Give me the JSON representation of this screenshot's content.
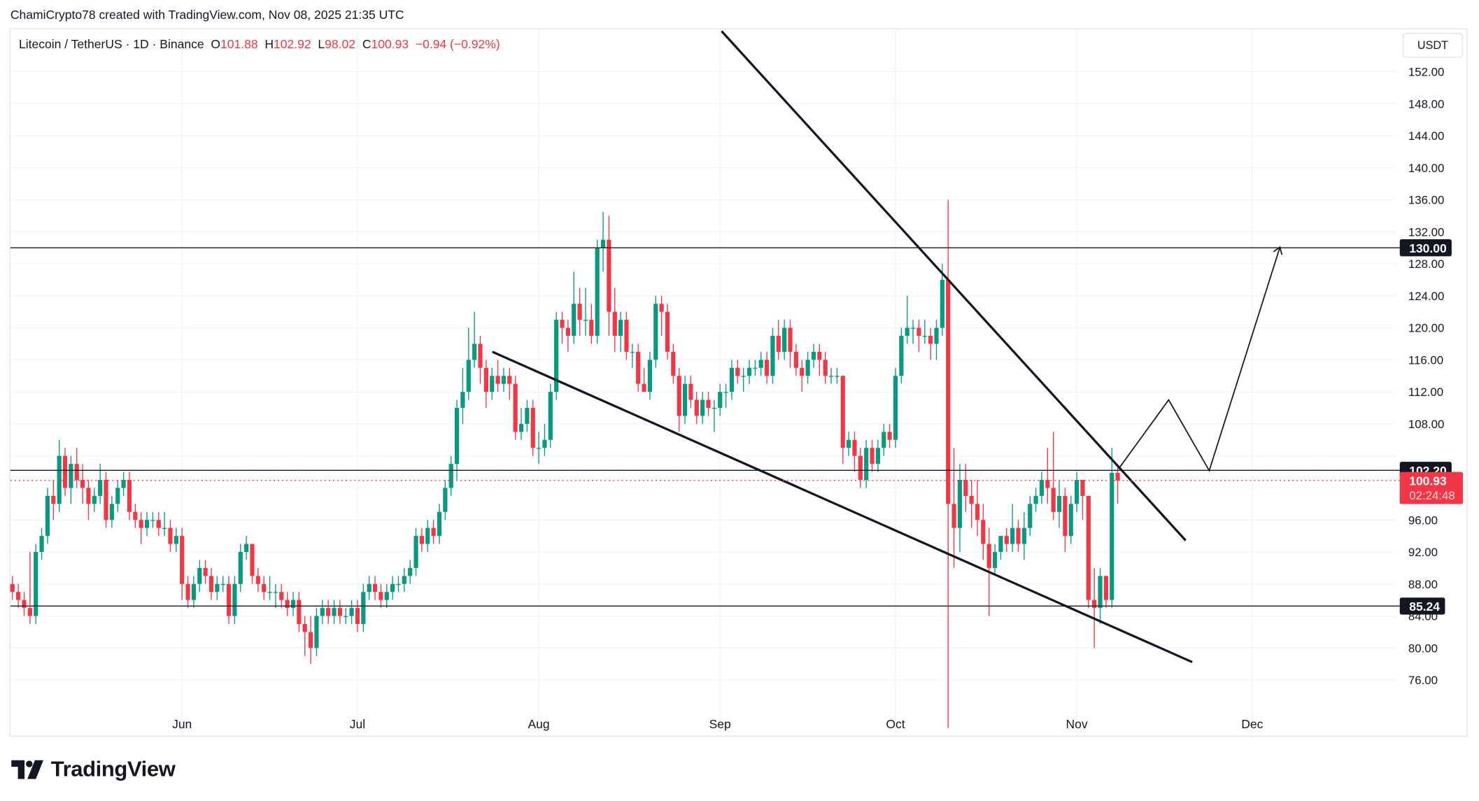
{
  "credit": "ChamiCrypto78 created with TradingView.com, Nov 08, 2025 21:35 UTC",
  "legend": {
    "symbol": "Litecoin / TetherUS · 1D · Binance",
    "o_label": "O",
    "o": "101.88",
    "h_label": "H",
    "h": "102.92",
    "l_label": "L",
    "l": "98.02",
    "c_label": "C",
    "c": "100.93",
    "change": "−0.94 (−0.92%)"
  },
  "currency_button": "USDT",
  "brand": "TradingView",
  "colors": {
    "up": "#089981",
    "down": "#f23645",
    "line": "#131722"
  },
  "chart_data": {
    "type": "candlestick",
    "title": "Litecoin / TetherUS · 1D · Binance",
    "ylim": [
      72,
      156
    ],
    "grid": true,
    "y_ticks": [
      "152.00",
      "148.00",
      "144.00",
      "140.00",
      "136.00",
      "132.00",
      "128.00",
      "124.00",
      "120.00",
      "116.00",
      "112.00",
      "108.00",
      "96.00",
      "92.00",
      "88.00",
      "84.00",
      "80.00",
      "76.00"
    ],
    "x_ticks": [
      {
        "label": "Jun",
        "date": "2025-06-01"
      },
      {
        "label": "Jul",
        "date": "2025-07-01"
      },
      {
        "label": "Aug",
        "date": "2025-08-01"
      },
      {
        "label": "Sep",
        "date": "2025-09-01"
      },
      {
        "label": "Oct",
        "date": "2025-10-01"
      },
      {
        "label": "Nov",
        "date": "2025-11-01"
      },
      {
        "label": "Dec",
        "date": "2025-12-01"
      }
    ],
    "levels": [
      {
        "value": 130.0,
        "label": "130.00"
      },
      {
        "value": 102.2,
        "label": "102.20"
      },
      {
        "value": 85.24,
        "label": "85.24"
      }
    ],
    "last_price": {
      "value": 100.93,
      "label": "100.93",
      "countdown": "02:24:48"
    },
    "candles": [
      [
        "2025-05-03",
        88,
        89,
        86,
        87
      ],
      [
        "2025-05-04",
        87,
        88,
        85,
        86
      ],
      [
        "2025-05-05",
        86,
        87,
        84,
        85
      ],
      [
        "2025-05-06",
        85,
        92,
        83,
        84
      ],
      [
        "2025-05-07",
        84,
        93,
        83,
        92
      ],
      [
        "2025-05-08",
        92,
        95,
        91,
        94
      ],
      [
        "2025-05-09",
        94,
        100,
        93,
        99
      ],
      [
        "2025-05-10",
        99,
        101,
        96,
        98
      ],
      [
        "2025-05-11",
        98,
        106,
        97,
        104
      ],
      [
        "2025-05-12",
        104,
        105,
        99,
        100
      ],
      [
        "2025-05-13",
        100,
        104,
        98,
        103
      ],
      [
        "2025-05-14",
        103,
        105,
        100,
        101
      ],
      [
        "2025-05-15",
        101,
        103,
        98,
        100
      ],
      [
        "2025-05-16",
        100,
        101,
        96,
        98
      ],
      [
        "2025-05-17",
        98,
        100,
        97,
        99
      ],
      [
        "2025-05-18",
        99,
        103,
        98,
        101
      ],
      [
        "2025-05-19",
        101,
        102,
        95,
        96
      ],
      [
        "2025-05-20",
        96,
        99,
        95,
        98
      ],
      [
        "2025-05-21",
        98,
        101,
        97,
        100
      ],
      [
        "2025-05-22",
        100,
        102,
        99,
        101
      ],
      [
        "2025-05-23",
        101,
        102,
        96,
        97
      ],
      [
        "2025-05-24",
        97,
        98,
        95,
        96
      ],
      [
        "2025-05-25",
        96,
        97,
        93,
        95
      ],
      [
        "2025-05-26",
        95,
        97,
        94,
        96
      ],
      [
        "2025-05-27",
        96,
        97,
        95,
        96
      ],
      [
        "2025-05-28",
        96,
        97,
        94,
        95
      ],
      [
        "2025-05-29",
        95,
        97,
        94,
        95
      ],
      [
        "2025-05-30",
        95,
        96,
        92,
        93
      ],
      [
        "2025-05-31",
        93,
        95,
        92,
        94
      ],
      [
        "2025-06-01",
        94,
        95,
        86,
        88
      ],
      [
        "2025-06-02",
        88,
        89,
        85,
        86
      ],
      [
        "2025-06-03",
        86,
        89,
        85,
        88
      ],
      [
        "2025-06-04",
        88,
        91,
        87,
        90
      ],
      [
        "2025-06-05",
        90,
        91,
        88,
        89
      ],
      [
        "2025-06-06",
        89,
        90,
        86,
        87
      ],
      [
        "2025-06-07",
        87,
        89,
        86,
        88
      ],
      [
        "2025-06-08",
        88,
        89,
        87,
        88
      ],
      [
        "2025-06-09",
        88,
        89,
        83,
        84
      ],
      [
        "2025-06-10",
        84,
        89,
        83,
        88
      ],
      [
        "2025-06-11",
        88,
        93,
        87,
        92
      ],
      [
        "2025-06-12",
        92,
        94,
        91,
        93
      ],
      [
        "2025-06-13",
        93,
        93,
        88,
        89
      ],
      [
        "2025-06-14",
        89,
        90,
        87,
        88
      ],
      [
        "2025-06-15",
        88,
        89,
        86,
        87
      ],
      [
        "2025-06-16",
        87,
        89,
        86,
        87
      ],
      [
        "2025-06-17",
        87,
        88,
        85,
        87
      ],
      [
        "2025-06-18",
        87,
        88,
        85,
        86
      ],
      [
        "2025-06-19",
        86,
        87,
        84,
        85
      ],
      [
        "2025-06-20",
        85,
        87,
        84,
        86
      ],
      [
        "2025-06-21",
        86,
        87,
        82,
        83
      ],
      [
        "2025-06-22",
        83,
        84,
        79,
        82
      ],
      [
        "2025-06-23",
        82,
        84,
        78,
        80
      ],
      [
        "2025-06-24",
        80,
        85,
        79,
        84
      ],
      [
        "2025-06-25",
        84,
        86,
        83,
        85
      ],
      [
        "2025-06-26",
        85,
        86,
        83,
        84
      ],
      [
        "2025-06-27",
        84,
        86,
        83,
        85
      ],
      [
        "2025-06-28",
        85,
        86,
        83,
        84
      ],
      [
        "2025-06-29",
        84,
        85,
        83,
        84
      ],
      [
        "2025-06-30",
        84,
        86,
        83,
        85
      ],
      [
        "2025-07-01",
        85,
        86,
        82,
        83
      ],
      [
        "2025-07-02",
        83,
        88,
        82,
        87
      ],
      [
        "2025-07-03",
        87,
        89,
        86,
        88
      ],
      [
        "2025-07-04",
        88,
        89,
        86,
        87
      ],
      [
        "2025-07-05",
        87,
        88,
        85,
        86
      ],
      [
        "2025-07-06",
        86,
        88,
        85,
        87
      ],
      [
        "2025-07-07",
        87,
        89,
        86,
        88
      ],
      [
        "2025-07-08",
        88,
        89,
        87,
        88
      ],
      [
        "2025-07-09",
        88,
        90,
        87,
        89
      ],
      [
        "2025-07-10",
        89,
        91,
        88,
        90
      ],
      [
        "2025-07-11",
        90,
        95,
        89,
        94
      ],
      [
        "2025-07-12",
        94,
        95,
        92,
        93
      ],
      [
        "2025-07-13",
        93,
        96,
        92,
        95
      ],
      [
        "2025-07-14",
        95,
        96,
        93,
        94
      ],
      [
        "2025-07-15",
        94,
        98,
        93,
        97
      ],
      [
        "2025-07-16",
        97,
        101,
        96,
        100
      ],
      [
        "2025-07-17",
        100,
        104,
        99,
        103
      ],
      [
        "2025-07-18",
        103,
        111,
        101,
        110
      ],
      [
        "2025-07-19",
        110,
        115,
        108,
        112
      ],
      [
        "2025-07-20",
        112,
        120,
        111,
        116
      ],
      [
        "2025-07-21",
        116,
        122,
        115,
        118
      ],
      [
        "2025-07-22",
        118,
        119,
        113,
        115
      ],
      [
        "2025-07-23",
        115,
        116,
        110,
        112
      ],
      [
        "2025-07-24",
        112,
        115,
        111,
        114
      ],
      [
        "2025-07-25",
        114,
        116,
        112,
        113
      ],
      [
        "2025-07-26",
        113,
        115,
        112,
        114
      ],
      [
        "2025-07-27",
        114,
        115,
        111,
        113
      ],
      [
        "2025-07-28",
        113,
        114,
        106,
        107
      ],
      [
        "2025-07-29",
        107,
        110,
        106,
        108
      ],
      [
        "2025-07-30",
        108,
        111,
        107,
        110
      ],
      [
        "2025-07-31",
        110,
        111,
        104,
        105
      ],
      [
        "2025-08-01",
        105,
        107,
        103,
        105
      ],
      [
        "2025-08-02",
        105,
        108,
        104,
        106
      ],
      [
        "2025-08-03",
        106,
        113,
        105,
        112
      ],
      [
        "2025-08-04",
        112,
        122,
        111,
        121
      ],
      [
        "2025-08-05",
        121,
        122,
        118,
        120
      ],
      [
        "2025-08-06",
        120,
        121,
        117,
        119
      ],
      [
        "2025-08-07",
        119,
        127,
        118,
        123
      ],
      [
        "2025-08-08",
        123,
        125,
        119,
        121
      ],
      [
        "2025-08-09",
        121,
        125,
        119,
        121
      ],
      [
        "2025-08-10",
        121,
        123,
        118,
        119
      ],
      [
        "2025-08-11",
        119,
        131,
        118,
        130
      ],
      [
        "2025-08-12",
        130,
        134.5,
        127,
        131
      ],
      [
        "2025-08-13",
        131,
        134,
        119,
        122
      ],
      [
        "2025-08-14",
        122,
        125,
        117,
        119
      ],
      [
        "2025-08-15",
        119,
        122,
        117,
        121
      ],
      [
        "2025-08-16",
        121,
        122,
        116,
        117
      ],
      [
        "2025-08-17",
        117,
        118,
        115,
        117
      ],
      [
        "2025-08-18",
        117,
        118,
        112,
        113
      ],
      [
        "2025-08-19",
        113,
        115,
        112,
        112
      ],
      [
        "2025-08-20",
        112,
        117,
        111,
        116
      ],
      [
        "2025-08-21",
        116,
        124,
        115,
        123
      ],
      [
        "2025-08-22",
        123,
        124,
        119,
        122
      ],
      [
        "2025-08-23",
        122,
        123,
        116,
        117
      ],
      [
        "2025-08-24",
        117,
        118,
        113,
        114
      ],
      [
        "2025-08-25",
        114,
        115,
        107,
        109
      ],
      [
        "2025-08-26",
        109,
        114,
        108,
        113
      ],
      [
        "2025-08-27",
        113,
        114,
        110,
        111
      ],
      [
        "2025-08-28",
        111,
        112,
        108,
        109
      ],
      [
        "2025-08-29",
        109,
        112,
        108,
        111
      ],
      [
        "2025-08-30",
        111,
        112,
        109,
        110
      ],
      [
        "2025-08-31",
        110,
        111,
        107,
        110
      ],
      [
        "2025-09-01",
        110,
        113,
        109,
        112
      ],
      [
        "2025-09-02",
        112,
        113,
        110,
        112
      ],
      [
        "2025-09-03",
        112,
        116,
        111,
        115
      ],
      [
        "2025-09-04",
        115,
        116,
        113,
        114
      ],
      [
        "2025-09-05",
        114,
        115,
        112,
        114
      ],
      [
        "2025-09-06",
        114,
        116,
        113,
        115
      ],
      [
        "2025-09-07",
        115,
        116,
        114,
        115
      ],
      [
        "2025-09-08",
        115,
        117,
        114,
        116
      ],
      [
        "2025-09-09",
        116,
        117,
        113,
        114
      ],
      [
        "2025-09-10",
        114,
        120,
        113,
        119
      ],
      [
        "2025-09-11",
        119,
        121,
        116,
        117
      ],
      [
        "2025-09-12",
        117,
        121,
        116,
        120
      ],
      [
        "2025-09-13",
        120,
        121,
        115,
        117
      ],
      [
        "2025-09-14",
        117,
        118,
        114,
        115
      ],
      [
        "2025-09-15",
        115,
        116,
        112,
        114
      ],
      [
        "2025-09-16",
        114,
        117,
        113,
        116
      ],
      [
        "2025-09-17",
        116,
        118,
        115,
        117
      ],
      [
        "2025-09-18",
        117,
        118,
        114,
        116
      ],
      [
        "2025-09-19",
        116,
        117,
        113,
        114
      ],
      [
        "2025-09-20",
        114,
        115,
        113,
        114
      ],
      [
        "2025-09-21",
        114,
        115,
        113,
        114
      ],
      [
        "2025-09-22",
        114,
        114,
        103,
        105
      ],
      [
        "2025-09-23",
        105,
        107,
        104,
        106
      ],
      [
        "2025-09-24",
        106,
        107,
        102,
        104
      ],
      [
        "2025-09-25",
        104,
        105,
        100,
        101
      ],
      [
        "2025-09-26",
        101,
        106,
        100,
        105
      ],
      [
        "2025-09-27",
        105,
        106,
        102,
        103
      ],
      [
        "2025-09-28",
        103,
        106,
        102,
        105
      ],
      [
        "2025-09-29",
        105,
        108,
        104,
        107
      ],
      [
        "2025-09-30",
        107,
        108,
        105,
        106
      ],
      [
        "2025-10-01",
        106,
        115,
        105,
        114
      ],
      [
        "2025-10-02",
        114,
        120,
        113,
        119
      ],
      [
        "2025-10-03",
        119,
        124,
        118,
        120
      ],
      [
        "2025-10-04",
        120,
        121,
        118,
        120
      ],
      [
        "2025-10-05",
        120,
        121,
        117,
        119
      ],
      [
        "2025-10-06",
        119,
        121,
        118,
        119
      ],
      [
        "2025-10-07",
        119,
        120,
        116,
        118
      ],
      [
        "2025-10-08",
        118,
        121,
        116,
        120
      ],
      [
        "2025-10-09",
        120,
        128,
        119,
        126
      ],
      [
        "2025-10-10",
        126,
        136,
        70,
        98
      ],
      [
        "2025-10-11",
        98,
        105,
        90,
        95
      ],
      [
        "2025-10-12",
        95,
        103,
        92,
        101
      ],
      [
        "2025-10-13",
        101,
        103,
        97,
        99
      ],
      [
        "2025-10-14",
        99,
        101,
        95,
        98
      ],
      [
        "2025-10-15",
        98,
        101,
        94,
        96
      ],
      [
        "2025-10-16",
        96,
        98,
        91,
        93
      ],
      [
        "2025-10-17",
        93,
        95,
        84,
        90
      ],
      [
        "2025-10-18",
        90,
        93,
        89,
        92
      ],
      [
        "2025-10-19",
        92,
        94,
        91,
        94
      ],
      [
        "2025-10-20",
        94,
        95,
        92,
        93
      ],
      [
        "2025-10-21",
        93,
        98,
        92,
        95
      ],
      [
        "2025-10-22",
        95,
        96,
        92,
        93
      ],
      [
        "2025-10-23",
        93,
        97,
        91,
        95
      ],
      [
        "2025-10-24",
        95,
        99,
        94,
        98
      ],
      [
        "2025-10-25",
        98,
        100,
        97,
        99
      ],
      [
        "2025-10-26",
        99,
        102,
        98,
        101
      ],
      [
        "2025-10-27",
        101,
        105,
        98,
        100
      ],
      [
        "2025-10-28",
        100,
        107,
        96,
        97
      ],
      [
        "2025-10-29",
        97,
        101,
        95,
        99
      ],
      [
        "2025-10-30",
        99,
        100,
        92,
        94
      ],
      [
        "2025-10-31",
        94,
        99,
        93,
        98
      ],
      [
        "2025-11-01",
        98,
        102,
        97,
        101
      ],
      [
        "2025-11-02",
        101,
        101,
        96,
        99
      ],
      [
        "2025-11-03",
        99,
        99,
        85,
        86
      ],
      [
        "2025-11-04",
        86,
        90,
        80,
        85
      ],
      [
        "2025-11-05",
        85,
        90,
        83,
        89
      ],
      [
        "2025-11-06",
        89,
        89,
        85,
        86
      ],
      [
        "2025-11-07",
        86,
        105,
        85,
        101.88
      ],
      [
        "2025-11-08",
        101.88,
        102.92,
        98.02,
        100.93
      ]
    ]
  }
}
